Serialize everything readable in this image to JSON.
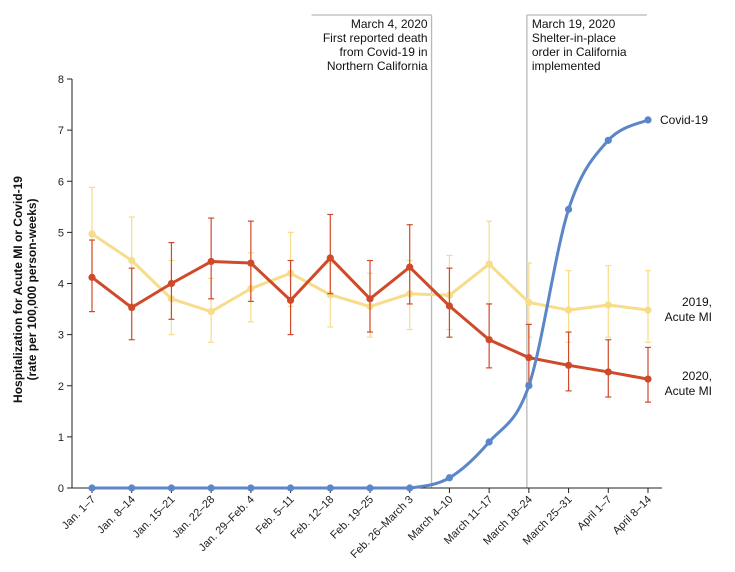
{
  "chart_data": {
    "type": "line",
    "ylabel_lines": [
      "Hospitalization for Acute MI or Covid-19",
      "(rate per 100,000 person-weeks)"
    ],
    "ylim": [
      0,
      8
    ],
    "yticks": [
      0,
      1,
      2,
      3,
      4,
      5,
      6,
      7,
      8
    ],
    "grid": false,
    "categories": [
      "Jan. 1–7",
      "Jan. 8–14",
      "Jan. 15–21",
      "Jan. 22–28",
      "Jan. 29–Feb. 4",
      "Feb. 5–11",
      "Feb. 12–18",
      "Feb. 19–25",
      "Feb. 26–March 3",
      "March 4–10",
      "March 11–17",
      "March 18–24",
      "March 25–31",
      "April 1–7",
      "April 8–14"
    ],
    "series": [
      {
        "name_lines": [
          "Covid-19"
        ],
        "color": "#5b86c8",
        "values": [
          0,
          0,
          0,
          0,
          0,
          0,
          0,
          0,
          0,
          0.2,
          0.9,
          2.0,
          5.45,
          6.8,
          7.2
        ],
        "markers_from_index": 0
      },
      {
        "name_lines": [
          "2019,",
          "Acute MI"
        ],
        "color": "#f7dc8a",
        "values": [
          4.97,
          4.45,
          3.7,
          3.45,
          3.9,
          4.2,
          3.78,
          3.55,
          3.8,
          3.77,
          4.38,
          3.63,
          3.48,
          3.58,
          3.48
        ],
        "err_low": [
          4.1,
          3.6,
          3.0,
          2.85,
          3.25,
          3.55,
          3.15,
          2.95,
          3.1,
          3.1,
          3.6,
          2.95,
          2.85,
          2.95,
          2.85
        ],
        "err_high": [
          5.88,
          5.3,
          4.45,
          4.1,
          4.6,
          5.0,
          4.4,
          4.2,
          4.45,
          4.55,
          5.22,
          4.4,
          4.25,
          4.35,
          4.25
        ]
      },
      {
        "name_lines": [
          "2020,",
          "Acute MI"
        ],
        "color": "#cf4a2a",
        "values": [
          4.12,
          3.53,
          4.0,
          4.43,
          4.4,
          3.67,
          4.5,
          3.7,
          4.32,
          3.56,
          2.9,
          2.55,
          2.4,
          2.27,
          2.13
        ],
        "err_low": [
          3.45,
          2.9,
          3.3,
          3.7,
          3.65,
          3.0,
          3.8,
          3.05,
          3.6,
          2.95,
          2.35,
          2.05,
          1.9,
          1.78,
          1.68
        ],
        "err_high": [
          4.85,
          4.3,
          4.8,
          5.28,
          5.22,
          4.45,
          5.35,
          4.45,
          5.15,
          4.3,
          3.6,
          3.2,
          3.05,
          2.9,
          2.75
        ]
      }
    ],
    "annotations": [
      {
        "at_index": 8.55,
        "lines": [
          "March 4, 2020",
          "First reported death",
          "from Covid-19 in",
          "Northern California"
        ],
        "align": "left-of-line"
      },
      {
        "at_index": 10.95,
        "lines": [
          "March 19, 2020",
          "Shelter-in-place",
          "order in California",
          "implemented"
        ],
        "align": "right-of-line"
      }
    ]
  }
}
